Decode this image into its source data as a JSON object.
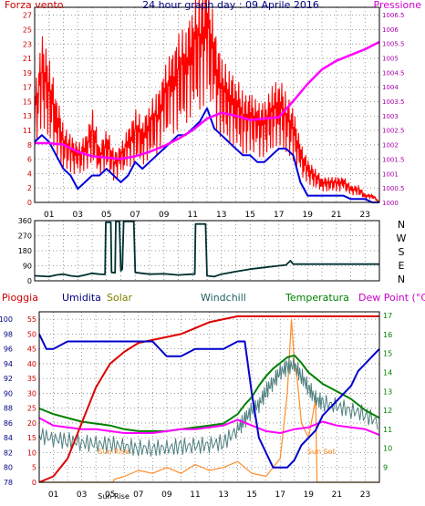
{
  "colors": {
    "background": "#ffffff",
    "frame": "#000000",
    "grid": "#808080",
    "wind_speed": "#ff0000",
    "wind_avg": "#0000dd",
    "pressure": "#ff00ff",
    "wind_dir": "#003030",
    "rain": "#dd0000",
    "humidity": "#0000cc",
    "solar": "#ff8c28",
    "windchill": "#4f7f7f",
    "temperature": "#008000",
    "dewpoint": "#ff00ff",
    "label_red": "#cc0000",
    "label_blue": "#000080",
    "label_solar": "#808000",
    "label_windchill": "#206060",
    "label_temp": "#008000",
    "label_dew": "#cc00cc"
  },
  "chart_data": [
    {
      "type": "line",
      "title": "24 hour graph day : 09 Aprile 2016",
      "ylabel_left": "Forza vento",
      "ylabel_right": "Pressione",
      "y_left_ticks": [
        "0",
        "2",
        "4",
        "6",
        "8",
        "11",
        "13",
        "15",
        "17",
        "19",
        "21",
        "23",
        "25",
        "27"
      ],
      "y_right_ticks": [
        "1000",
        "1000.5",
        "1001",
        "1001.5",
        "1002",
        "1002.5",
        "1003",
        "1003.5",
        "1004",
        "1004.5",
        "1005",
        "1005.5",
        "1006",
        "1006.5"
      ],
      "x_ticks": [
        "01",
        "03",
        "05",
        "07",
        "09",
        "11",
        "13",
        "15",
        "17",
        "19",
        "21",
        "23"
      ],
      "xlim_hours": [
        0,
        24
      ],
      "ylim_left": [
        0,
        29
      ],
      "ylim_right": [
        1000,
        1006.75
      ],
      "grid": true,
      "series": [
        {
          "name": "Forza vento",
          "x": [
            0,
            0.5,
            1,
            1.5,
            2,
            2.5,
            3,
            3.5,
            4,
            4.5,
            5,
            5.5,
            6,
            6.5,
            7,
            7.5,
            8,
            8.5,
            9,
            9.5,
            10,
            10.5,
            11,
            11.5,
            12,
            12.5,
            13,
            13.5,
            14,
            14.5,
            15,
            15.5,
            16,
            16.5,
            17,
            17.5,
            18,
            18.5,
            19,
            19.5,
            20,
            20.5,
            21,
            21.5,
            22,
            22.5,
            23,
            23.5,
            24
          ],
          "values": [
            14,
            20,
            17,
            13,
            9,
            8,
            7,
            8,
            11,
            7,
            9,
            6,
            7,
            9,
            11,
            10,
            12,
            13,
            16,
            18,
            20,
            21,
            24,
            25,
            27,
            21,
            17,
            16,
            15,
            13,
            13,
            12,
            12,
            14,
            15,
            13,
            11,
            7,
            5,
            4,
            3,
            3,
            3,
            3,
            2,
            2,
            1,
            1,
            0
          ]
        },
        {
          "name": "Vento medio",
          "x": [
            0,
            0.5,
            1,
            1.5,
            2,
            2.5,
            3,
            3.5,
            4,
            4.5,
            5,
            5.5,
            6,
            6.5,
            7,
            7.5,
            8,
            8.5,
            9,
            9.5,
            10,
            10.5,
            11,
            11.5,
            12,
            12.5,
            13,
            13.5,
            14,
            14.5,
            15,
            15.5,
            16,
            16.5,
            17,
            17.5,
            18,
            18.5,
            19,
            19.5,
            20,
            20.5,
            21,
            21.5,
            22,
            22.5,
            23,
            23.5,
            24
          ],
          "values": [
            9,
            10,
            9,
            7,
            5,
            4,
            2,
            3,
            4,
            4,
            5,
            4,
            3,
            4,
            6,
            5,
            6,
            7,
            8,
            9,
            10,
            10,
            11,
            12,
            14,
            11,
            10,
            9,
            8,
            7,
            7,
            6,
            6,
            7,
            8,
            8,
            7,
            3,
            1,
            1,
            1,
            1,
            1,
            1,
            0.5,
            0.5,
            0.5,
            0,
            0
          ]
        },
        {
          "name": "Pressione",
          "x": [
            0,
            1,
            2,
            3,
            4,
            5,
            6,
            7,
            8,
            9,
            10,
            11,
            12,
            13,
            14,
            15,
            16,
            17,
            18,
            19,
            20,
            21,
            22,
            23,
            24
          ],
          "values": [
            1002.05,
            1002.05,
            1002.0,
            1001.75,
            1001.6,
            1001.55,
            1001.5,
            1001.6,
            1001.75,
            1001.95,
            1002.2,
            1002.5,
            1002.9,
            1003.1,
            1003.0,
            1002.85,
            1002.9,
            1002.95,
            1003.5,
            1004.1,
            1004.6,
            1004.9,
            1005.1,
            1005.3,
            1005.55
          ]
        }
      ]
    },
    {
      "type": "line",
      "title": "",
      "y_ticks": [
        "0",
        "90",
        "180",
        "270",
        "360"
      ],
      "direction_labels": [
        "N",
        "W",
        "S",
        "E",
        "N"
      ],
      "x_ticks": [
        "01",
        "03",
        "05",
        "07",
        "09",
        "11",
        "13",
        "15",
        "17",
        "19",
        "21",
        "23"
      ],
      "ylim": [
        0,
        360
      ],
      "xlim_hours": [
        0,
        24
      ],
      "grid": true,
      "series": [
        {
          "name": "",
          "x": [
            0,
            0.5,
            1,
            1.5,
            2,
            2.5,
            3,
            3.5,
            4,
            4.5,
            4.9,
            4.95,
            5.3,
            5.35,
            5.6,
            5.65,
            5.9,
            6.0,
            6.1,
            6.2,
            6.9,
            7.0,
            7.5,
            8,
            9,
            10,
            11,
            11.15,
            11.2,
            11.9,
            12.0,
            12.5,
            13,
            14,
            15,
            16,
            17,
            17.5,
            17.8,
            18,
            19,
            20,
            21,
            22,
            23,
            24
          ],
          "values": [
            30,
            28,
            25,
            35,
            40,
            30,
            25,
            35,
            45,
            40,
            38,
            350,
            350,
            50,
            48,
            355,
            355,
            60,
            70,
            355,
            355,
            50,
            45,
            40,
            42,
            35,
            40,
            40,
            340,
            340,
            30,
            25,
            40,
            55,
            70,
            80,
            90,
            95,
            120,
            100,
            100,
            100,
            100,
            100,
            100,
            100
          ]
        }
      ]
    },
    {
      "type": "line",
      "title": "",
      "legend": [
        "Pioggia",
        "Umidita",
        "Solar",
        "Windchill",
        "Temperatura",
        "Dew Point (°C)"
      ],
      "y_left_ticks": [
        "78",
        "80",
        "82",
        "84",
        "86",
        "88",
        "90",
        "92",
        "94",
        "96",
        "98",
        "100"
      ],
      "y_mid_ticks": [
        "0",
        "5",
        "10",
        "15",
        "20",
        "25",
        "30",
        "35",
        "40",
        "45",
        "50",
        "55"
      ],
      "y_right_ticks": [
        "9",
        "10",
        "11",
        "12",
        "13",
        "14",
        "15",
        "16",
        "17"
      ],
      "ylim_humidity": [
        78,
        101
      ],
      "ylim_rain": [
        0,
        57.5
      ],
      "ylim_temp": [
        8.2,
        17.2
      ],
      "x_ticks": [
        "01",
        "03",
        "05",
        "07",
        "09",
        "11",
        "13",
        "15",
        "17",
        "19",
        "21",
        "23"
      ],
      "xlim_hours": [
        0,
        24
      ],
      "annotations": [
        "Sun Rise",
        "Sun Rise",
        "Sun Set"
      ],
      "grid": true,
      "series": [
        {
          "name": "Pioggia",
          "x": [
            0,
            1,
            2,
            3,
            4,
            5,
            6,
            7,
            8,
            9,
            10,
            11,
            12,
            13,
            14,
            14.5,
            15,
            16,
            17,
            18,
            19,
            20,
            21,
            22,
            23,
            24
          ],
          "values": [
            0,
            2,
            8,
            20,
            32,
            40,
            44,
            47,
            48,
            49,
            50,
            52,
            54,
            55,
            56,
            56,
            56,
            56,
            56,
            56,
            56,
            56,
            56,
            56,
            56,
            56
          ]
        },
        {
          "name": "Umidita",
          "x": [
            0,
            0.5,
            1,
            2,
            3,
            4,
            5,
            6,
            7,
            8,
            9,
            10,
            11,
            12,
            13,
            14,
            14.5,
            15,
            15.5,
            16,
            16.5,
            17,
            17.5,
            18,
            18.5,
            19,
            19.5,
            20,
            20.5,
            21,
            21.5,
            22,
            22.5,
            23,
            23.5,
            24
          ],
          "values": [
            98,
            96,
            96,
            97,
            97,
            97,
            97,
            97,
            97,
            97,
            95,
            95,
            96,
            96,
            96,
            97,
            97,
            90,
            84,
            82,
            80,
            80,
            80,
            81,
            83,
            84,
            85,
            87,
            88,
            89,
            90,
            91,
            93,
            94,
            95,
            96
          ]
        },
        {
          "name": "Solar",
          "x": [
            0,
            5.2,
            5.3,
            6,
            7,
            8,
            9,
            10,
            11,
            12,
            13,
            14,
            15,
            16,
            17,
            17.5,
            17.8,
            18,
            18.2,
            18.5,
            19,
            19.5,
            19.6,
            20,
            21,
            22,
            23,
            24
          ],
          "values": [
            0,
            0,
            1,
            2,
            4,
            3,
            5,
            3,
            6,
            4,
            5,
            7,
            3,
            2,
            8,
            30,
            55,
            40,
            35,
            20,
            15,
            28,
            0,
            0,
            0,
            0,
            0,
            0
          ]
        },
        {
          "name": "Windchill",
          "x": [
            0,
            1,
            2,
            3,
            4,
            5,
            6,
            7,
            8,
            9,
            10,
            11,
            12,
            13,
            14,
            14.5,
            15,
            15.5,
            16,
            16.5,
            17,
            17.5,
            18,
            18.5,
            19,
            19.5,
            20,
            21,
            22,
            23,
            24
          ],
          "values": [
            10.7,
            10.5,
            10.4,
            10.3,
            10.2,
            10.2,
            10.1,
            10.0,
            10.0,
            10.0,
            10.1,
            10.1,
            10.2,
            10.3,
            11.0,
            11.5,
            12.0,
            12.3,
            13.0,
            13.5,
            14.0,
            14.3,
            14.4,
            13.8,
            13.2,
            12.6,
            12.4,
            12.2,
            12.0,
            11.8,
            11.3
          ]
        },
        {
          "name": "Temperatura",
          "x": [
            0,
            1,
            2,
            3,
            4,
            5,
            6,
            7,
            8,
            9,
            10,
            11,
            12,
            13,
            14,
            14.5,
            15,
            15.5,
            16,
            16.5,
            17,
            17.5,
            18,
            18.5,
            19,
            19.5,
            20,
            21,
            22,
            23,
            24
          ],
          "values": [
            12.1,
            11.8,
            11.6,
            11.4,
            11.3,
            11.2,
            11.0,
            10.9,
            10.9,
            10.9,
            11.0,
            11.1,
            11.2,
            11.3,
            11.8,
            12.3,
            12.7,
            13.3,
            13.8,
            14.2,
            14.5,
            14.8,
            14.9,
            14.5,
            14.0,
            13.7,
            13.4,
            13.0,
            12.6,
            12.0,
            11.6
          ]
        },
        {
          "name": "Dew Point (°C)",
          "x": [
            0,
            1,
            2,
            3,
            4,
            5,
            6,
            7,
            8,
            9,
            10,
            11,
            12,
            13,
            14,
            15,
            16,
            17,
            18,
            19,
            20,
            21,
            22,
            23,
            24
          ],
          "values": [
            11.6,
            11.2,
            11.1,
            11.0,
            11.0,
            10.9,
            10.8,
            10.8,
            10.8,
            10.9,
            11.0,
            11.0,
            11.1,
            11.2,
            11.5,
            11.2,
            10.9,
            10.8,
            11.0,
            11.1,
            11.4,
            11.2,
            11.1,
            11.0,
            10.7
          ]
        }
      ]
    }
  ]
}
